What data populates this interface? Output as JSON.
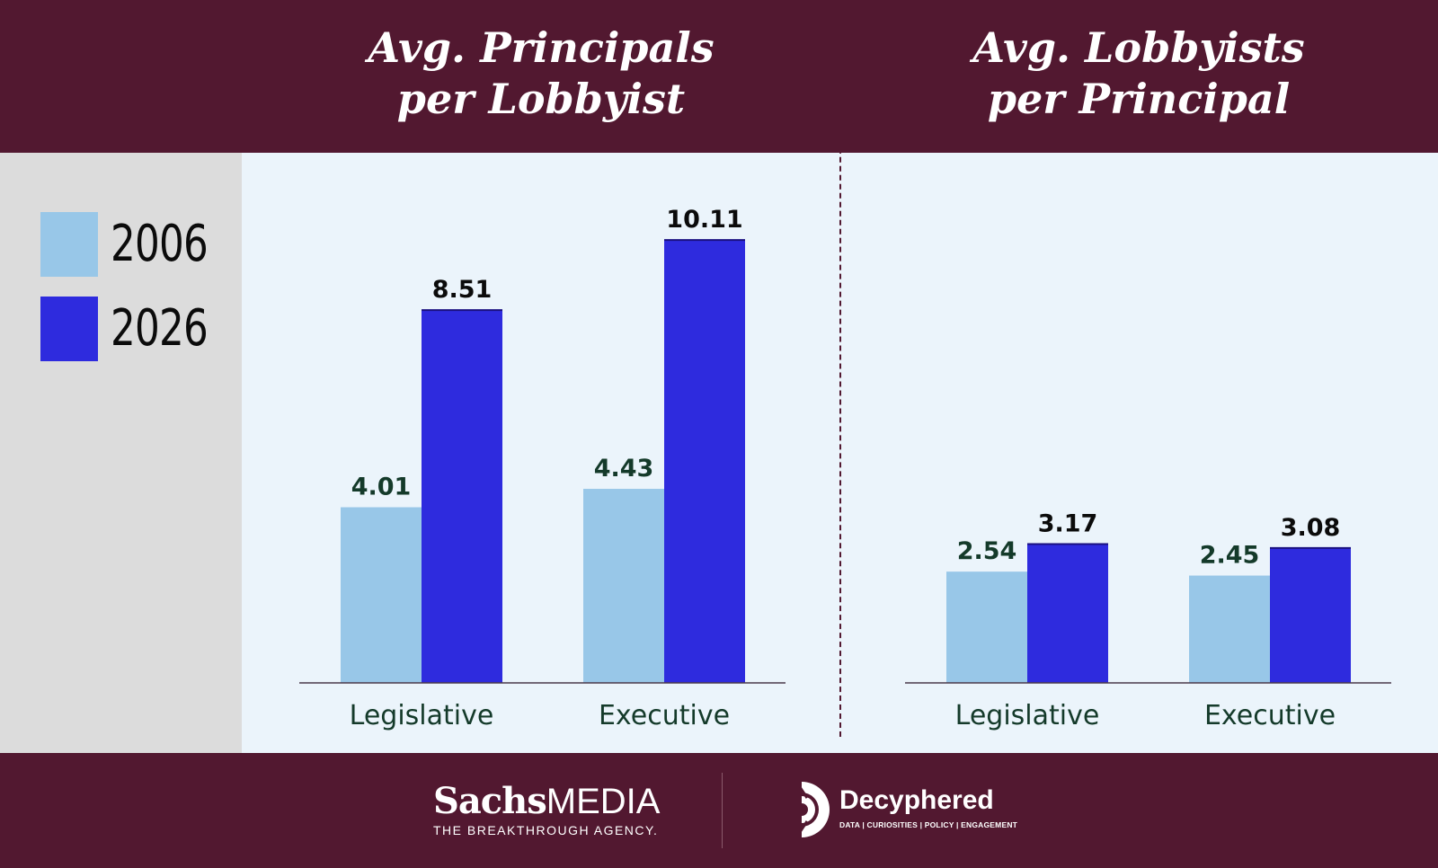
{
  "legend": {
    "items": [
      {
        "label": "2006",
        "color": "#98c7e8"
      },
      {
        "label": "2026",
        "color": "#2e2bde"
      }
    ]
  },
  "colors": {
    "background_header": "#521830",
    "plot_background": "#ebf4fb",
    "legend_background": "#dcdcdc",
    "series_2006": "#98c7e8",
    "series_2026": "#2e2bde"
  },
  "chart_data": [
    {
      "type": "bar",
      "title_lines": [
        "Avg. Principals",
        "per Lobbyist"
      ],
      "categories": [
        "Legislative",
        "Executive"
      ],
      "series": [
        {
          "name": "2006",
          "values": [
            4.01,
            4.43
          ],
          "labels": [
            "4.01",
            "4.43"
          ]
        },
        {
          "name": "2026",
          "values": [
            8.51,
            10.11
          ],
          "labels": [
            "8.51",
            "10.11"
          ]
        }
      ],
      "ylim": [
        0,
        11
      ],
      "grid": false,
      "legend_position": "left"
    },
    {
      "type": "bar",
      "title_lines": [
        "Avg. Lobbyists",
        "per Principal"
      ],
      "categories": [
        "Legislative",
        "Executive"
      ],
      "series": [
        {
          "name": "2006",
          "values": [
            2.54,
            2.45
          ],
          "labels": [
            "2.54",
            "2.45"
          ]
        },
        {
          "name": "2026",
          "values": [
            3.17,
            3.08
          ],
          "labels": [
            "3.17",
            "3.08"
          ]
        }
      ],
      "ylim": [
        0,
        11
      ],
      "grid": false,
      "legend_position": "left"
    }
  ],
  "footer": {
    "logo1": {
      "name_bold": "Sachs",
      "name_light": "MEDIA",
      "tagline": "THE BREAKTHROUGH AGENCY."
    },
    "logo2": {
      "name": "Decyphered",
      "tagline": "DATA | CURIOSITIES | POLICY | ENGAGEMENT"
    }
  }
}
